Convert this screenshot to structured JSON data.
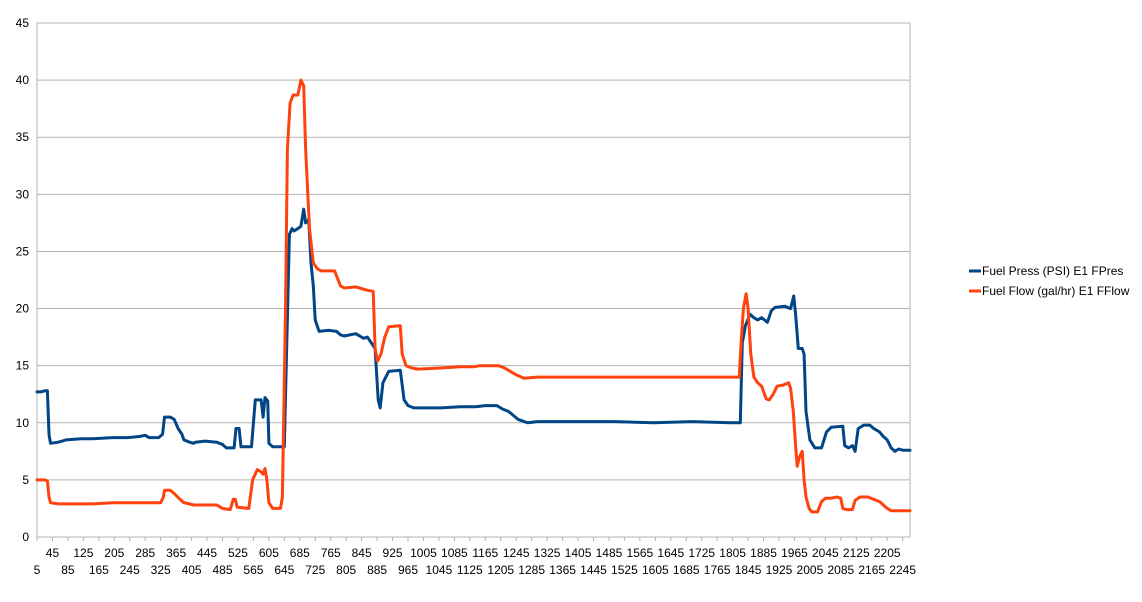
{
  "chart_data": {
    "type": "line",
    "title": "",
    "xlabel": "",
    "ylabel": "",
    "ylim": [
      0,
      45
    ],
    "xlim": [
      5,
      2264
    ],
    "grid": true,
    "legend_position": "right",
    "y_ticks": [
      "0",
      "5",
      "10",
      "15",
      "20",
      "25",
      "30",
      "35",
      "40",
      "45"
    ],
    "x_ticks_lower": [
      "5",
      "85",
      "165",
      "245",
      "325",
      "405",
      "485",
      "565",
      "645",
      "725",
      "805",
      "885",
      "965",
      "1045",
      "1125",
      "1205",
      "1285",
      "1365",
      "1445",
      "1525",
      "1605",
      "1685",
      "1765",
      "1845",
      "1925",
      "2005",
      "2085",
      "2165",
      "2245"
    ],
    "x_ticks_upper": [
      "45",
      "125",
      "205",
      "285",
      "365",
      "445",
      "525",
      "605",
      "685",
      "765",
      "845",
      "925",
      "1005",
      "1085",
      "1165",
      "1245",
      "1325",
      "1405",
      "1485",
      "1565",
      "1645",
      "1725",
      "1805",
      "1885",
      "1965",
      "2045",
      "2125",
      "2205"
    ],
    "series": [
      {
        "name": "Fuel Press (PSI) E1 FPres",
        "color": "#004586",
        "points": [
          [
            5,
            12.7
          ],
          [
            15,
            12.7
          ],
          [
            25,
            12.8
          ],
          [
            32,
            12.8
          ],
          [
            36,
            9
          ],
          [
            40,
            8.2
          ],
          [
            60,
            8.3
          ],
          [
            80,
            8.5
          ],
          [
            120,
            8.6
          ],
          [
            150,
            8.6
          ],
          [
            200,
            8.7
          ],
          [
            240,
            8.7
          ],
          [
            270,
            8.8
          ],
          [
            285,
            8.9
          ],
          [
            295,
            8.7
          ],
          [
            320,
            8.7
          ],
          [
            330,
            9
          ],
          [
            335,
            10.5
          ],
          [
            350,
            10.5
          ],
          [
            360,
            10.3
          ],
          [
            370,
            9.5
          ],
          [
            380,
            9
          ],
          [
            385,
            8.5
          ],
          [
            400,
            8.3
          ],
          [
            410,
            8.2
          ],
          [
            415,
            8.3
          ],
          [
            440,
            8.4
          ],
          [
            470,
            8.3
          ],
          [
            485,
            8.1
          ],
          [
            495,
            7.8
          ],
          [
            515,
            7.8
          ],
          [
            520,
            9.5
          ],
          [
            528,
            9.5
          ],
          [
            533,
            7.9
          ],
          [
            560,
            7.9
          ],
          [
            570,
            12
          ],
          [
            585,
            12
          ],
          [
            590,
            10.5
          ],
          [
            595,
            12.2
          ],
          [
            602,
            11.9
          ],
          [
            605,
            8.2
          ],
          [
            615,
            7.9
          ],
          [
            645,
            7.9
          ],
          [
            658,
            26.5
          ],
          [
            665,
            27
          ],
          [
            670,
            26.8
          ],
          [
            680,
            27
          ],
          [
            688,
            27.2
          ],
          [
            695,
            28.7
          ],
          [
            700,
            27.5
          ],
          [
            708,
            27.8
          ],
          [
            714,
            24
          ],
          [
            720,
            22
          ],
          [
            725,
            19
          ],
          [
            735,
            18
          ],
          [
            760,
            18.1
          ],
          [
            780,
            18
          ],
          [
            790,
            17.7
          ],
          [
            800,
            17.6
          ],
          [
            830,
            17.8
          ],
          [
            840,
            17.6
          ],
          [
            850,
            17.4
          ],
          [
            860,
            17.5
          ],
          [
            870,
            17
          ],
          [
            880,
            16.5
          ],
          [
            888,
            12
          ],
          [
            893,
            11.3
          ],
          [
            900,
            13.5
          ],
          [
            915,
            14.5
          ],
          [
            945,
            14.6
          ],
          [
            955,
            12
          ],
          [
            965,
            11.5
          ],
          [
            980,
            11.3
          ],
          [
            1050,
            11.3
          ],
          [
            1100,
            11.4
          ],
          [
            1140,
            11.4
          ],
          [
            1165,
            11.5
          ],
          [
            1195,
            11.5
          ],
          [
            1210,
            11.2
          ],
          [
            1225,
            11
          ],
          [
            1250,
            10.3
          ],
          [
            1275,
            10
          ],
          [
            1300,
            10.1
          ],
          [
            1400,
            10.1
          ],
          [
            1500,
            10.1
          ],
          [
            1600,
            10
          ],
          [
            1700,
            10.1
          ],
          [
            1800,
            10
          ],
          [
            1825,
            10
          ],
          [
            1830,
            17
          ],
          [
            1838,
            18.5
          ],
          [
            1850,
            19.5
          ],
          [
            1860,
            19.2
          ],
          [
            1870,
            19
          ],
          [
            1880,
            19.2
          ],
          [
            1895,
            18.8
          ],
          [
            1905,
            19.8
          ],
          [
            1915,
            20.1
          ],
          [
            1940,
            20.2
          ],
          [
            1955,
            20
          ],
          [
            1963,
            21.1
          ],
          [
            1968,
            19.5
          ],
          [
            1975,
            16.5
          ],
          [
            1985,
            16.5
          ],
          [
            1990,
            16
          ],
          [
            1995,
            11
          ],
          [
            2005,
            8.5
          ],
          [
            2018,
            7.8
          ],
          [
            2035,
            7.8
          ],
          [
            2048,
            9.2
          ],
          [
            2060,
            9.6
          ],
          [
            2090,
            9.7
          ],
          [
            2095,
            8
          ],
          [
            2105,
            7.8
          ],
          [
            2115,
            8
          ],
          [
            2122,
            7.5
          ],
          [
            2130,
            9.5
          ],
          [
            2145,
            9.8
          ],
          [
            2160,
            9.8
          ],
          [
            2170,
            9.5
          ],
          [
            2185,
            9.2
          ],
          [
            2195,
            8.8
          ],
          [
            2205,
            8.5
          ],
          [
            2215,
            7.8
          ],
          [
            2225,
            7.5
          ],
          [
            2235,
            7.7
          ],
          [
            2245,
            7.6
          ],
          [
            2264,
            7.6
          ]
        ]
      },
      {
        "name": "Fuel Flow (gal/hr) E1 FFlow",
        "color": "#ff420e",
        "points": [
          [
            5,
            5
          ],
          [
            25,
            5
          ],
          [
            32,
            4.9
          ],
          [
            36,
            3.5
          ],
          [
            40,
            3
          ],
          [
            60,
            2.9
          ],
          [
            100,
            2.9
          ],
          [
            150,
            2.9
          ],
          [
            200,
            3
          ],
          [
            250,
            3
          ],
          [
            300,
            3
          ],
          [
            325,
            3
          ],
          [
            332,
            3.5
          ],
          [
            335,
            4.1
          ],
          [
            350,
            4.1
          ],
          [
            360,
            3.8
          ],
          [
            375,
            3.3
          ],
          [
            385,
            3
          ],
          [
            400,
            2.9
          ],
          [
            410,
            2.8
          ],
          [
            440,
            2.8
          ],
          [
            470,
            2.8
          ],
          [
            485,
            2.5
          ],
          [
            505,
            2.4
          ],
          [
            513,
            3.3
          ],
          [
            518,
            3.3
          ],
          [
            523,
            2.6
          ],
          [
            553,
            2.5
          ],
          [
            563,
            5
          ],
          [
            575,
            5.9
          ],
          [
            585,
            5.7
          ],
          [
            590,
            5.5
          ],
          [
            595,
            6
          ],
          [
            600,
            5
          ],
          [
            605,
            3
          ],
          [
            615,
            2.5
          ],
          [
            635,
            2.5
          ],
          [
            640,
            3.5
          ],
          [
            648,
            20
          ],
          [
            653,
            34
          ],
          [
            660,
            38
          ],
          [
            668,
            38.7
          ],
          [
            680,
            38.7
          ],
          [
            688,
            40
          ],
          [
            695,
            39.5
          ],
          [
            700,
            34
          ],
          [
            710,
            27
          ],
          [
            720,
            24
          ],
          [
            730,
            23.5
          ],
          [
            740,
            23.3
          ],
          [
            760,
            23.3
          ],
          [
            775,
            23.3
          ],
          [
            790,
            22
          ],
          [
            800,
            21.8
          ],
          [
            830,
            21.9
          ],
          [
            840,
            21.8
          ],
          [
            860,
            21.6
          ],
          [
            875,
            21.5
          ],
          [
            880,
            16.5
          ],
          [
            886,
            15.4
          ],
          [
            895,
            16
          ],
          [
            905,
            17.5
          ],
          [
            915,
            18.4
          ],
          [
            945,
            18.5
          ],
          [
            950,
            16
          ],
          [
            960,
            15
          ],
          [
            975,
            14.8
          ],
          [
            990,
            14.7
          ],
          [
            1050,
            14.8
          ],
          [
            1100,
            14.9
          ],
          [
            1135,
            14.9
          ],
          [
            1150,
            15
          ],
          [
            1200,
            15
          ],
          [
            1215,
            14.8
          ],
          [
            1230,
            14.5
          ],
          [
            1245,
            14.2
          ],
          [
            1265,
            13.9
          ],
          [
            1300,
            14
          ],
          [
            1350,
            14
          ],
          [
            1400,
            14
          ],
          [
            1500,
            14
          ],
          [
            1600,
            14
          ],
          [
            1700,
            14
          ],
          [
            1822,
            14
          ],
          [
            1827,
            17
          ],
          [
            1833,
            20
          ],
          [
            1840,
            21.3
          ],
          [
            1845,
            20
          ],
          [
            1852,
            16
          ],
          [
            1860,
            14
          ],
          [
            1870,
            13.5
          ],
          [
            1880,
            13.2
          ],
          [
            1892,
            12.1
          ],
          [
            1900,
            12
          ],
          [
            1910,
            12.5
          ],
          [
            1920,
            13.2
          ],
          [
            1935,
            13.3
          ],
          [
            1950,
            13.5
          ],
          [
            1955,
            13
          ],
          [
            1962,
            11
          ],
          [
            1968,
            8
          ],
          [
            1972,
            6.2
          ],
          [
            1978,
            7
          ],
          [
            1985,
            7.5
          ],
          [
            1990,
            5
          ],
          [
            1995,
            3.5
          ],
          [
            2003,
            2.5
          ],
          [
            2010,
            2.2
          ],
          [
            2025,
            2.2
          ],
          [
            2035,
            3.1
          ],
          [
            2045,
            3.4
          ],
          [
            2060,
            3.4
          ],
          [
            2075,
            3.5
          ],
          [
            2085,
            3.4
          ],
          [
            2090,
            2.5
          ],
          [
            2100,
            2.4
          ],
          [
            2115,
            2.4
          ],
          [
            2122,
            3.2
          ],
          [
            2135,
            3.5
          ],
          [
            2155,
            3.5
          ],
          [
            2170,
            3.3
          ],
          [
            2185,
            3.1
          ],
          [
            2195,
            2.8
          ],
          [
            2205,
            2.5
          ],
          [
            2215,
            2.3
          ],
          [
            2240,
            2.3
          ],
          [
            2264,
            2.3
          ]
        ]
      }
    ]
  }
}
